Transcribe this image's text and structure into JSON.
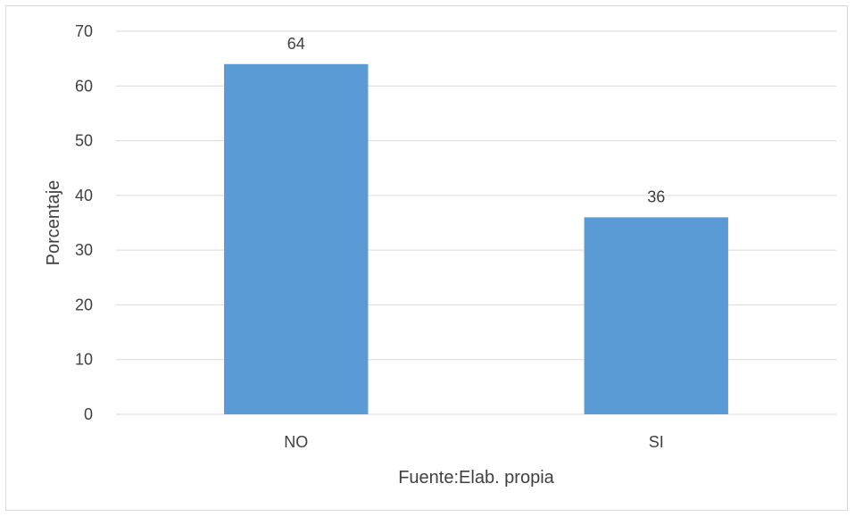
{
  "chart_data": {
    "type": "bar",
    "categories": [
      "NO",
      "SI"
    ],
    "values": [
      64,
      36
    ],
    "data_labels": [
      "64",
      "36"
    ],
    "title": "",
    "xlabel": "Fuente:Elab. propia",
    "ylabel": "Porcentaje",
    "ylim": [
      0,
      70
    ],
    "yticks": [
      0,
      10,
      20,
      30,
      40,
      50,
      60,
      70
    ],
    "ytick_labels": [
      "0",
      "10",
      "20",
      "30",
      "40",
      "50",
      "60",
      "70"
    ],
    "grid": true,
    "legend": "none",
    "bar_color": "#5b9bd5",
    "grid_color": "#d9d9d9",
    "text_color": "#404040"
  }
}
